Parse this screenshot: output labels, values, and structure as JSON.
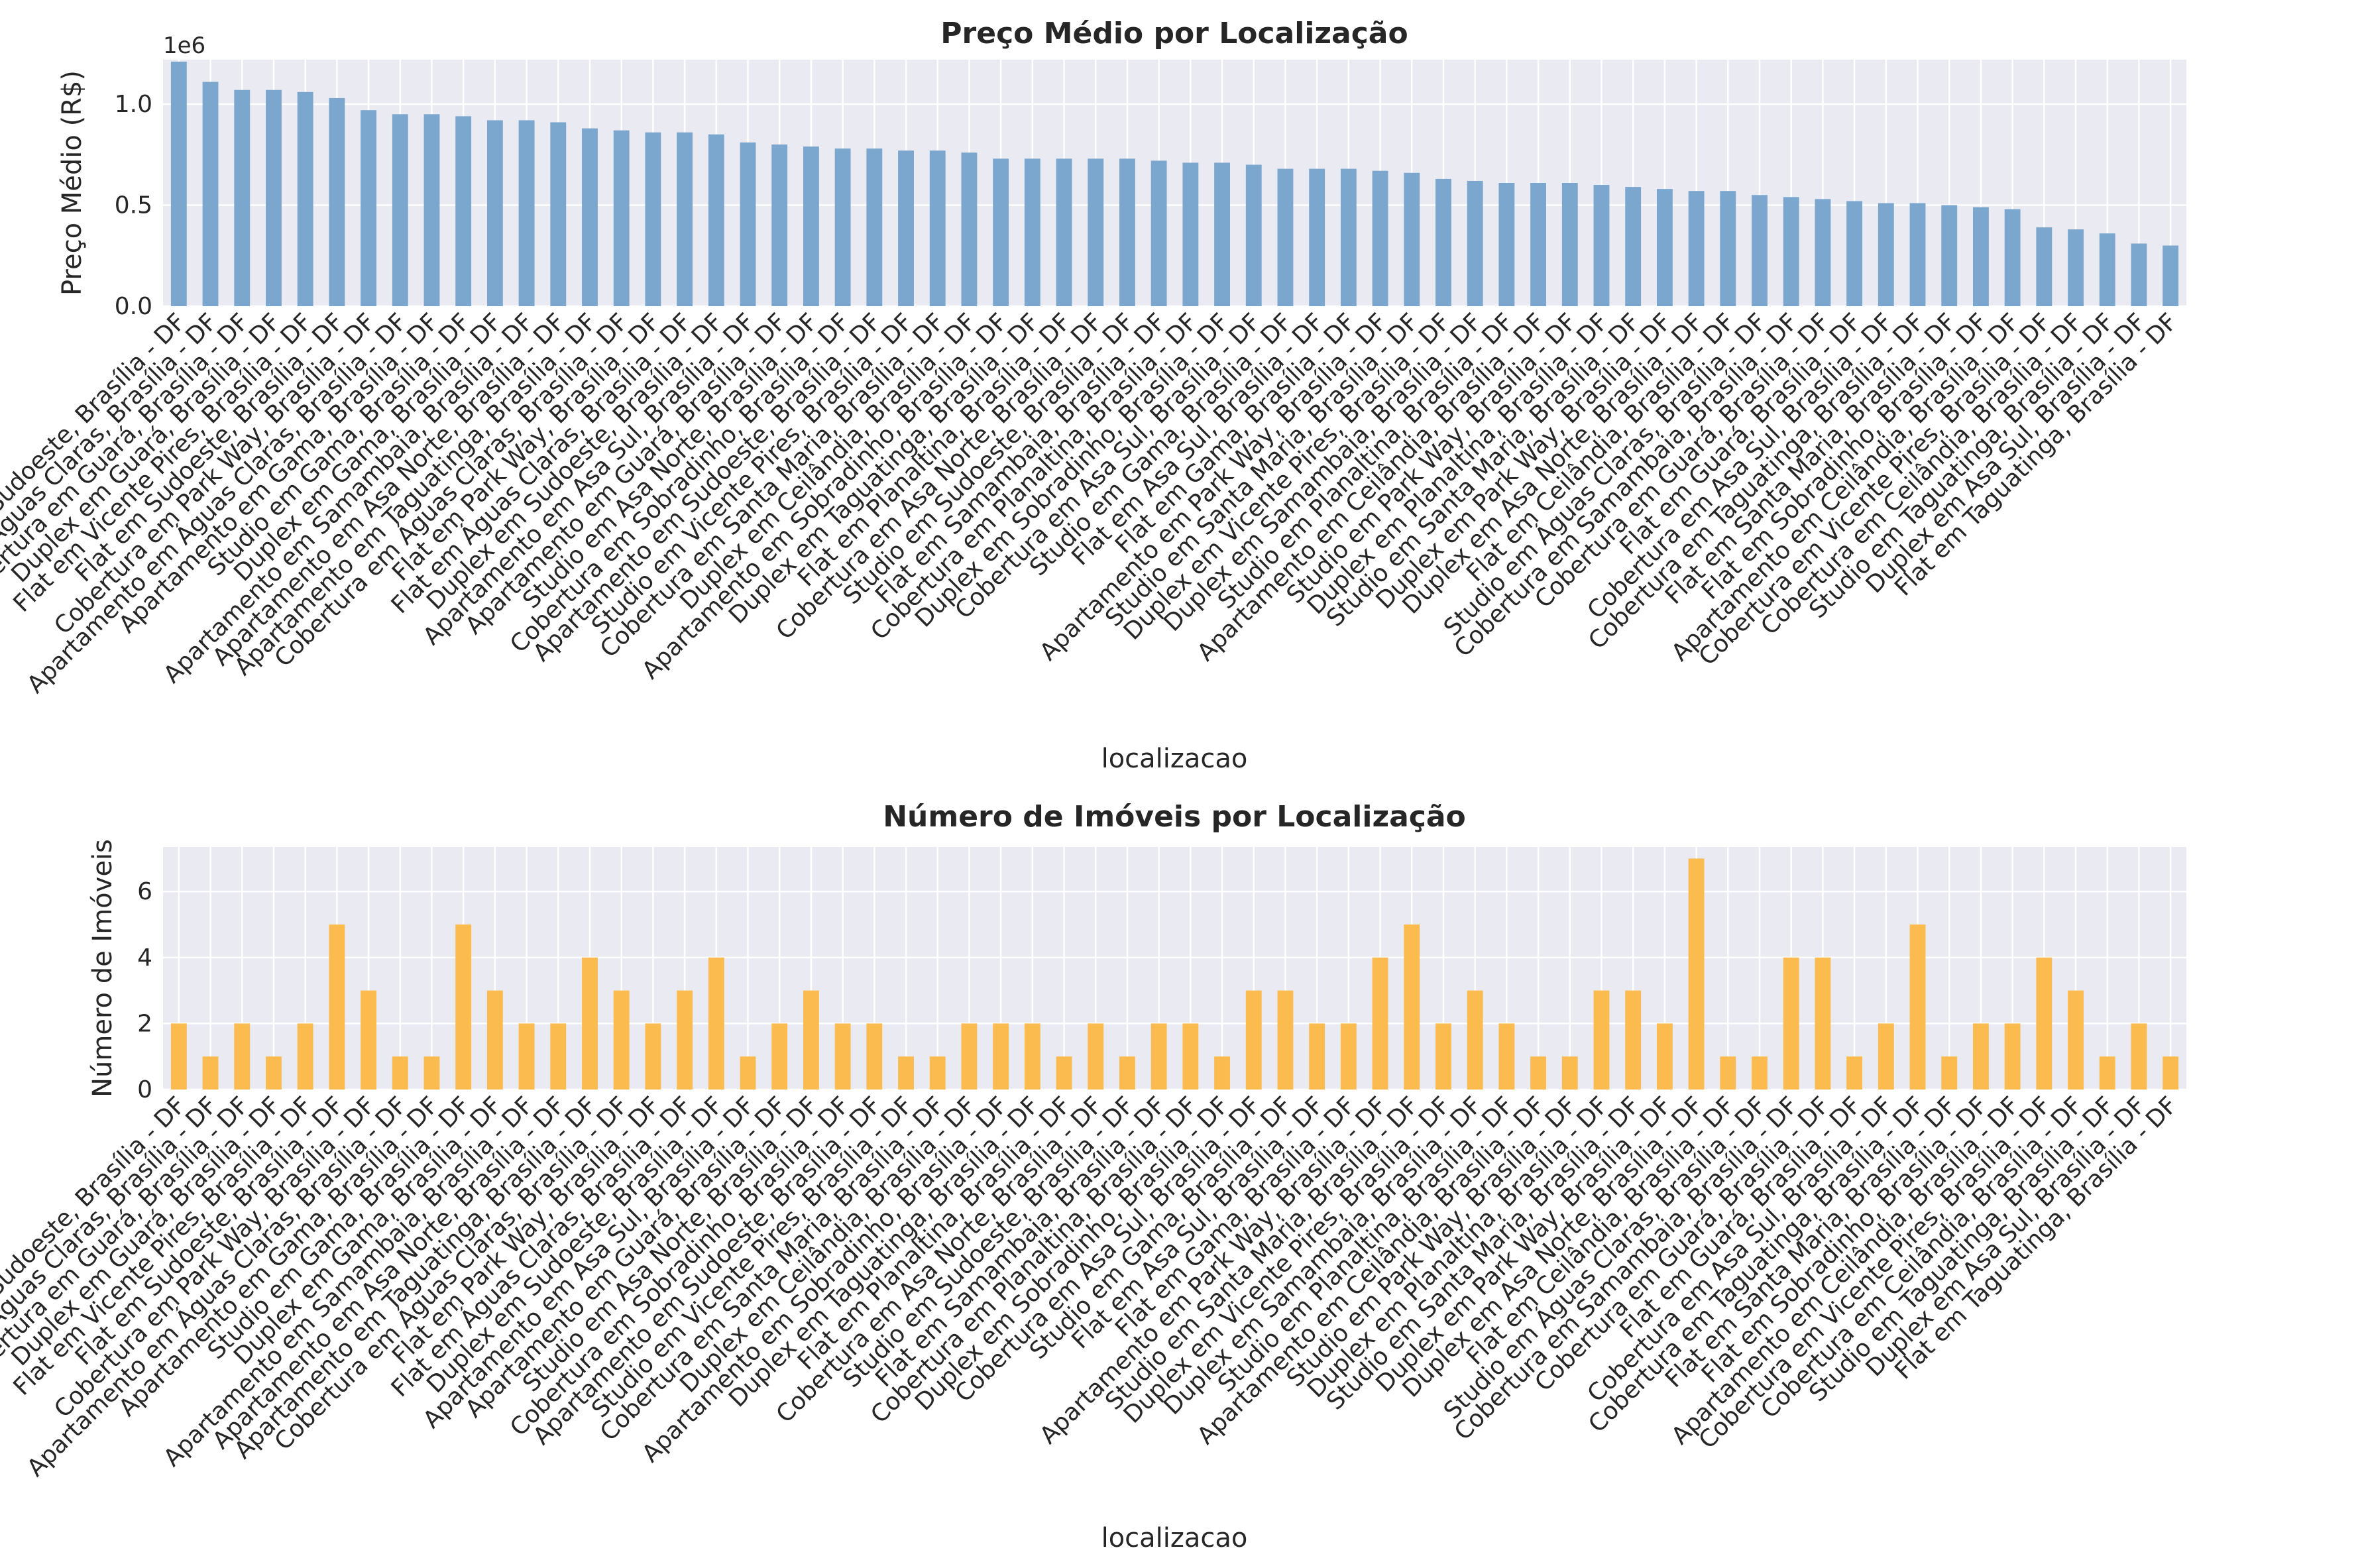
{
  "chart_data": [
    {
      "type": "bar",
      "title": "Preço Médio por Localização",
      "xlabel": "localizacao",
      "ylabel": "Preço Médio (R$)",
      "y_offset_label": "1e6",
      "yticks": [
        "0.0",
        "0.5",
        "1.0"
      ],
      "ylim": [
        0,
        1.22
      ],
      "y_scale": 1000000,
      "grid": true,
      "color": "#7ba6ce",
      "categories": [
        "Studio em Sudoeste, Brasília - DF",
        "Duplex em Águas Claras, Brasília - DF",
        "Cobertura em Guará, Brasília - DF",
        "Duplex em Guará, Brasília - DF",
        "Flat em Vicente Pires, Brasília - DF",
        "Flat em Sudoeste, Brasília - DF",
        "Cobertura em Park Way, Brasília - DF",
        "Apartamento em Águas Claras, Brasília - DF",
        "Apartamento em Gama, Brasília - DF",
        "Studio em Gama, Brasília - DF",
        "Duplex em Gama, Brasília - DF",
        "Apartamento em Samambaia, Brasília - DF",
        "Apartamento em Asa Norte, Brasília - DF",
        "Apartamento em Taguatinga, Brasília - DF",
        "Cobertura em Águas Claras, Brasília - DF",
        "Flat em Park Way, Brasília - DF",
        "Flat em Águas Claras, Brasília - DF",
        "Duplex em Sudoeste, Brasília - DF",
        "Apartamento em Asa Sul, Brasília - DF",
        "Apartamento em Guará, Brasília - DF",
        "Studio em Asa Norte, Brasília - DF",
        "Cobertura em Sobradinho, Brasília - DF",
        "Apartamento em Sudoeste, Brasília - DF",
        "Studio em Vicente Pires, Brasília - DF",
        "Cobertura em Santa Maria, Brasília - DF",
        "Duplex em Ceilândia, Brasília - DF",
        "Apartamento em Sobradinho, Brasília - DF",
        "Duplex em Taguatinga, Brasília - DF",
        "Flat em Planaltina, Brasília - DF",
        "Cobertura em Asa Norte, Brasília - DF",
        "Studio em Sudoeste, Brasília - DF",
        "Flat em Samambaia, Brasília - DF",
        "Cobertura em Planaltina, Brasília - DF",
        "Duplex em Sobradinho, Brasília - DF",
        "Cobertura em Asa Sul, Brasília - DF",
        "Studio em Gama, Brasília - DF",
        "Flat em Asa Sul, Brasília - DF",
        "Flat em Gama, Brasília - DF",
        "Apartamento em Park Way, Brasília - DF",
        "Studio em Santa Maria, Brasília - DF",
        "Duplex em Vicente Pires, Brasília - DF",
        "Duplex em Samambaia, Brasília - DF",
        "Studio em Planaltina, Brasília - DF",
        "Apartamento em Ceilândia, Brasília - DF",
        "Studio em Park Way, Brasília - DF",
        "Duplex em Planaltina, Brasília - DF",
        "Studio em Santa Maria, Brasília - DF",
        "Duplex em Park Way, Brasília - DF",
        "Duplex em Asa Norte, Brasília - DF",
        "Flat em Ceilândia, Brasília - DF",
        "Studio em Águas Claras, Brasília - DF",
        "Cobertura em Samambaia, Brasília - DF",
        "Cobertura em Guará, Brasília - DF",
        "Flat em Guará, Brasília - DF",
        "Cobertura em Asa Sul, Brasília - DF",
        "Cobertura em Taguatinga, Brasília - DF",
        "Flat em Santa Maria, Brasília - DF",
        "Flat em Sobradinho, Brasília - DF",
        "Apartamento em Ceilândia, Brasília - DF",
        "Cobertura em Vicente Pires, Brasília - DF",
        "Cobertura em Ceilândia, Brasília - DF",
        "Studio em Taguatinga, Brasília - DF",
        "Duplex em Asa Sul, Brasília - DF",
        "Flat em Taguatinga, Brasília - DF"
      ],
      "values": [
        1.21,
        1.11,
        1.07,
        1.07,
        1.06,
        1.03,
        0.97,
        0.95,
        0.95,
        0.94,
        0.92,
        0.92,
        0.91,
        0.88,
        0.87,
        0.86,
        0.86,
        0.85,
        0.81,
        0.8,
        0.79,
        0.78,
        0.78,
        0.77,
        0.77,
        0.76,
        0.73,
        0.73,
        0.73,
        0.73,
        0.73,
        0.72,
        0.71,
        0.71,
        0.7,
        0.68,
        0.68,
        0.68,
        0.67,
        0.66,
        0.63,
        0.62,
        0.61,
        0.61,
        0.61,
        0.6,
        0.59,
        0.58,
        0.57,
        0.57,
        0.55,
        0.54,
        0.53,
        0.52,
        0.51,
        0.51,
        0.5,
        0.49,
        0.48,
        0.39,
        0.38,
        0.36,
        0.31,
        0.3
      ]
    },
    {
      "type": "bar",
      "title": "Número de Imóveis por Localização",
      "xlabel": "localizacao",
      "ylabel": "Número de Imóveis",
      "yticks": [
        "0",
        "2",
        "4",
        "6"
      ],
      "ylim": [
        0,
        7.35
      ],
      "grid": true,
      "color": "#fbbb4f",
      "values": [
        2,
        1,
        2,
        1,
        2,
        5,
        3,
        1,
        1,
        5,
        3,
        2,
        2,
        4,
        3,
        2,
        3,
        4,
        1,
        2,
        3,
        2,
        2,
        1,
        1,
        2,
        2,
        2,
        1,
        2,
        1,
        2,
        2,
        1,
        3,
        3,
        2,
        2,
        4,
        5,
        2,
        3,
        2,
        1,
        1,
        3,
        3,
        2,
        7,
        1,
        1,
        4,
        4,
        1,
        2,
        5,
        1,
        2,
        2,
        4,
        3,
        1,
        2,
        1
      ]
    }
  ]
}
